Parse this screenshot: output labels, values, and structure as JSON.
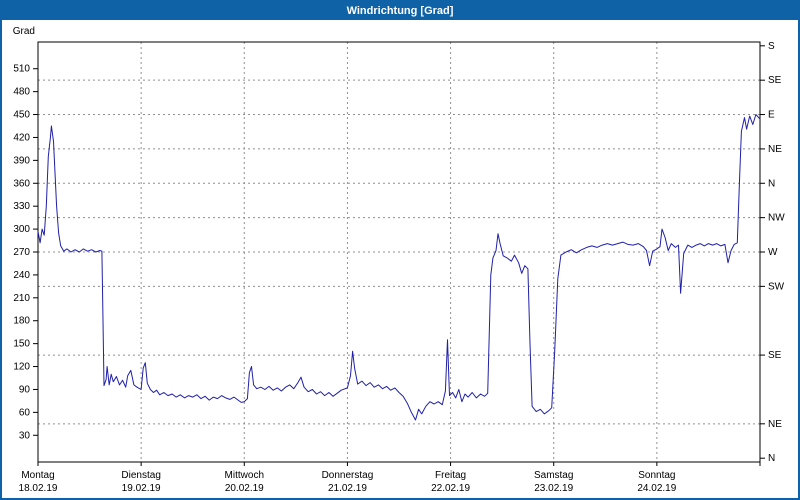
{
  "window": {
    "title": "Windrichtung [Grad]"
  },
  "colors": {
    "titlebar_bg": "#0f62a6",
    "titlebar_text": "#ffffff",
    "line": "#2020aa",
    "grid": "#909090",
    "axis": "#000000",
    "text": "#000000",
    "plot_bg": "#ffffff"
  },
  "chart_data": {
    "type": "line",
    "title": "Windrichtung [Grad]",
    "ylabel": "Grad",
    "ylim": [
      0,
      540
    ],
    "grid": "dashed",
    "y_ticks": [
      30,
      60,
      90,
      120,
      150,
      180,
      210,
      240,
      270,
      300,
      330,
      360,
      390,
      420,
      450,
      480,
      510
    ],
    "right_axis": [
      {
        "deg": 540,
        "label": "S"
      },
      {
        "deg": 495,
        "label": "SE"
      },
      {
        "deg": 450,
        "label": "E"
      },
      {
        "deg": 405,
        "label": "NE"
      },
      {
        "deg": 360,
        "label": "N"
      },
      {
        "deg": 315,
        "label": "NW"
      },
      {
        "deg": 270,
        "label": "W"
      },
      {
        "deg": 225,
        "label": "SW"
      },
      {
        "deg": 135,
        "label": "SE"
      },
      {
        "deg": 45,
        "label": "NE"
      },
      {
        "deg": 0,
        "label": "N"
      }
    ],
    "x_days": [
      {
        "name": "Montag",
        "date": "18.02.19"
      },
      {
        "name": "Dienstag",
        "date": "19.02.19"
      },
      {
        "name": "Mittwoch",
        "date": "20.02.19"
      },
      {
        "name": "Donnerstag",
        "date": "21.02.19"
      },
      {
        "name": "Freitag",
        "date": "22.02.19"
      },
      {
        "name": "Samstag",
        "date": "23.02.19"
      },
      {
        "name": "Sonntag",
        "date": "24.02.19"
      }
    ],
    "series": [
      {
        "name": "Windrichtung",
        "points": [
          [
            0.0,
            297
          ],
          [
            0.02,
            282
          ],
          [
            0.04,
            300
          ],
          [
            0.06,
            292
          ],
          [
            0.08,
            330
          ],
          [
            0.1,
            395
          ],
          [
            0.12,
            420
          ],
          [
            0.13,
            435
          ],
          [
            0.15,
            415
          ],
          [
            0.17,
            360
          ],
          [
            0.18,
            330
          ],
          [
            0.2,
            295
          ],
          [
            0.22,
            278
          ],
          [
            0.25,
            271
          ],
          [
            0.28,
            274
          ],
          [
            0.32,
            270
          ],
          [
            0.36,
            273
          ],
          [
            0.4,
            270
          ],
          [
            0.44,
            274
          ],
          [
            0.48,
            271
          ],
          [
            0.52,
            273
          ],
          [
            0.56,
            270
          ],
          [
            0.6,
            272
          ],
          [
            0.62,
            271
          ],
          [
            0.63,
            180
          ],
          [
            0.64,
            95
          ],
          [
            0.66,
            103
          ],
          [
            0.67,
            120
          ],
          [
            0.69,
            96
          ],
          [
            0.71,
            110
          ],
          [
            0.73,
            100
          ],
          [
            0.76,
            107
          ],
          [
            0.79,
            96
          ],
          [
            0.82,
            102
          ],
          [
            0.85,
            93
          ],
          [
            0.87,
            108
          ],
          [
            0.9,
            115
          ],
          [
            0.93,
            96
          ],
          [
            0.96,
            93
          ],
          [
            1.0,
            90
          ],
          [
            1.02,
            118
          ],
          [
            1.04,
            125
          ],
          [
            1.06,
            98
          ],
          [
            1.09,
            90
          ],
          [
            1.12,
            86
          ],
          [
            1.15,
            89
          ],
          [
            1.18,
            83
          ],
          [
            1.22,
            86
          ],
          [
            1.26,
            82
          ],
          [
            1.3,
            84
          ],
          [
            1.34,
            80
          ],
          [
            1.38,
            83
          ],
          [
            1.42,
            79
          ],
          [
            1.46,
            82
          ],
          [
            1.5,
            80
          ],
          [
            1.54,
            83
          ],
          [
            1.58,
            78
          ],
          [
            1.62,
            81
          ],
          [
            1.66,
            76
          ],
          [
            1.7,
            80
          ],
          [
            1.74,
            78
          ],
          [
            1.78,
            82
          ],
          [
            1.82,
            79
          ],
          [
            1.86,
            77
          ],
          [
            1.9,
            80
          ],
          [
            1.94,
            76
          ],
          [
            1.97,
            73
          ],
          [
            2.0,
            74
          ],
          [
            2.03,
            78
          ],
          [
            2.05,
            112
          ],
          [
            2.07,
            120
          ],
          [
            2.09,
            96
          ],
          [
            2.12,
            91
          ],
          [
            2.16,
            93
          ],
          [
            2.2,
            90
          ],
          [
            2.24,
            94
          ],
          [
            2.28,
            89
          ],
          [
            2.32,
            92
          ],
          [
            2.36,
            88
          ],
          [
            2.4,
            93
          ],
          [
            2.44,
            96
          ],
          [
            2.48,
            91
          ],
          [
            2.52,
            99
          ],
          [
            2.55,
            106
          ],
          [
            2.58,
            93
          ],
          [
            2.62,
            87
          ],
          [
            2.66,
            90
          ],
          [
            2.7,
            84
          ],
          [
            2.74,
            87
          ],
          [
            2.78,
            82
          ],
          [
            2.82,
            86
          ],
          [
            2.86,
            81
          ],
          [
            2.9,
            85
          ],
          [
            2.94,
            89
          ],
          [
            3.0,
            92
          ],
          [
            3.03,
            108
          ],
          [
            3.05,
            140
          ],
          [
            3.07,
            118
          ],
          [
            3.1,
            97
          ],
          [
            3.14,
            101
          ],
          [
            3.18,
            95
          ],
          [
            3.22,
            99
          ],
          [
            3.26,
            93
          ],
          [
            3.3,
            96
          ],
          [
            3.34,
            91
          ],
          [
            3.38,
            94
          ],
          [
            3.42,
            89
          ],
          [
            3.46,
            92
          ],
          [
            3.5,
            86
          ],
          [
            3.54,
            81
          ],
          [
            3.58,
            72
          ],
          [
            3.62,
            60
          ],
          [
            3.66,
            50
          ],
          [
            3.69,
            64
          ],
          [
            3.72,
            58
          ],
          [
            3.76,
            68
          ],
          [
            3.8,
            74
          ],
          [
            3.84,
            71
          ],
          [
            3.88,
            74
          ],
          [
            3.92,
            70
          ],
          [
            3.95,
            88
          ],
          [
            3.97,
            155
          ],
          [
            3.99,
            82
          ],
          [
            4.02,
            86
          ],
          [
            4.05,
            79
          ],
          [
            4.08,
            90
          ],
          [
            4.11,
            74
          ],
          [
            4.14,
            84
          ],
          [
            4.17,
            80
          ],
          [
            4.21,
            86
          ],
          [
            4.25,
            79
          ],
          [
            4.29,
            84
          ],
          [
            4.33,
            81
          ],
          [
            4.36,
            85
          ],
          [
            4.39,
            240
          ],
          [
            4.41,
            262
          ],
          [
            4.44,
            272
          ],
          [
            4.46,
            294
          ],
          [
            4.48,
            281
          ],
          [
            4.51,
            265
          ],
          [
            4.55,
            262
          ],
          [
            4.59,
            258
          ],
          [
            4.62,
            266
          ],
          [
            4.66,
            256
          ],
          [
            4.69,
            242
          ],
          [
            4.72,
            252
          ],
          [
            4.75,
            248
          ],
          [
            4.77,
            150
          ],
          [
            4.79,
            68
          ],
          [
            4.83,
            61
          ],
          [
            4.87,
            64
          ],
          [
            4.91,
            58
          ],
          [
            4.95,
            62
          ],
          [
            4.98,
            66
          ],
          [
            5.01,
            140
          ],
          [
            5.04,
            235
          ],
          [
            5.07,
            266
          ],
          [
            5.12,
            270
          ],
          [
            5.17,
            273
          ],
          [
            5.22,
            269
          ],
          [
            5.27,
            273
          ],
          [
            5.32,
            276
          ],
          [
            5.37,
            278
          ],
          [
            5.42,
            276
          ],
          [
            5.47,
            279
          ],
          [
            5.52,
            281
          ],
          [
            5.57,
            279
          ],
          [
            5.62,
            281
          ],
          [
            5.67,
            283
          ],
          [
            5.72,
            280
          ],
          [
            5.77,
            279
          ],
          [
            5.82,
            281
          ],
          [
            5.87,
            277
          ],
          [
            5.9,
            272
          ],
          [
            5.93,
            252
          ],
          [
            5.96,
            271
          ],
          [
            6.0,
            274
          ],
          [
            6.03,
            277
          ],
          [
            6.05,
            300
          ],
          [
            6.08,
            289
          ],
          [
            6.11,
            272
          ],
          [
            6.14,
            281
          ],
          [
            6.18,
            276
          ],
          [
            6.21,
            279
          ],
          [
            6.23,
            216
          ],
          [
            6.26,
            268
          ],
          [
            6.3,
            279
          ],
          [
            6.34,
            276
          ],
          [
            6.38,
            279
          ],
          [
            6.42,
            281
          ],
          [
            6.46,
            278
          ],
          [
            6.5,
            281
          ],
          [
            6.54,
            279
          ],
          [
            6.58,
            281
          ],
          [
            6.62,
            278
          ],
          [
            6.66,
            280
          ],
          [
            6.69,
            256
          ],
          [
            6.72,
            272
          ],
          [
            6.75,
            280
          ],
          [
            6.78,
            282
          ],
          [
            6.8,
            360
          ],
          [
            6.82,
            428
          ],
          [
            6.85,
            446
          ],
          [
            6.87,
            431
          ],
          [
            6.9,
            448
          ],
          [
            6.93,
            437
          ],
          [
            6.96,
            450
          ],
          [
            7.0,
            444
          ]
        ]
      }
    ]
  }
}
